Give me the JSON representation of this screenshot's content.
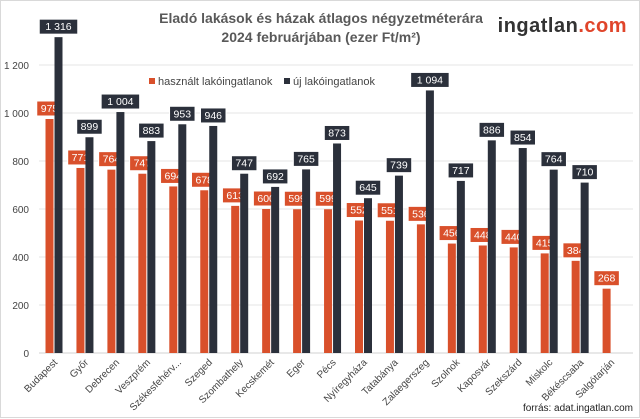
{
  "chart_data": {
    "type": "bar",
    "title_line1": "Eladó  lakások és házak átlagos négyzetméterára",
    "title_line2": "2024 februárjában (ezer Ft/m²)",
    "categories": [
      "Budapest",
      "Győr",
      "Debrecen",
      "Veszprém",
      "Székesfehérv...",
      "Szeged",
      "Szombathely",
      "Kecskemét",
      "Eger",
      "Pécs",
      "Nyíregyháza",
      "Tatabánya",
      "Zalaegerszeg",
      "Szolnok",
      "Kaposvár",
      "Szekszárd",
      "Miskolc",
      "Békéscsaba",
      "Salgótarján"
    ],
    "series": [
      {
        "name": "használt lakóingatlanok",
        "color": "#d9502b",
        "values": [
          975,
          771,
          764,
          747,
          694,
          678,
          613,
          600,
          599,
          599,
          552,
          551,
          536,
          456,
          448,
          440,
          415,
          384,
          268
        ]
      },
      {
        "name": "új lakóingatlanok",
        "color": "#2b303b",
        "values": [
          1316,
          899,
          1004,
          883,
          953,
          946,
          747,
          692,
          765,
          873,
          645,
          739,
          1094,
          717,
          886,
          854,
          764,
          710,
          null
        ]
      }
    ],
    "ylim": [
      0,
      1300
    ],
    "yticks": [
      0,
      200,
      400,
      600,
      800,
      1000,
      1200
    ],
    "ytick_labels": [
      "0",
      "200",
      "400",
      "600",
      "800",
      "1 000",
      "1 200"
    ],
    "grid": true,
    "legend_position": "top-left inside"
  },
  "logo": {
    "main": "ingatlan",
    "suffix": ".com"
  },
  "source": "forrás: adat.ingatlan.com"
}
